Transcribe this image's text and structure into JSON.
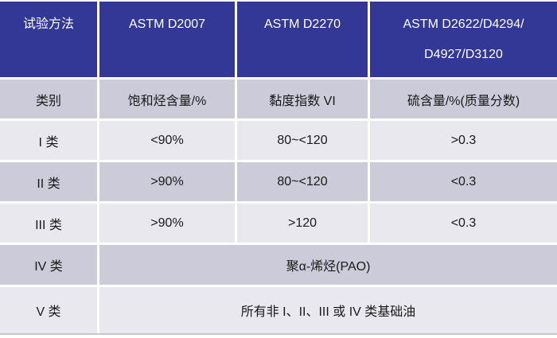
{
  "table": {
    "header": {
      "test_method": "试验方法",
      "astm_d2007": "ASTM D2007",
      "astm_d2270": "ASTM D2270",
      "astm_sulfur_line1": "ASTM D2622/D4294/",
      "astm_sulfur_line2": "D4927/D3120"
    },
    "category_row": {
      "label": "类别",
      "saturates": "饱和烃含量/%",
      "viscosity_index": "黏度指数 VI",
      "sulfur": "硫含量/%(质量分数)"
    },
    "group_rows": [
      {
        "label": "I 类",
        "saturates": "<90%",
        "viscosity_index": "80~<120",
        "sulfur": ">0.3"
      },
      {
        "label": "II 类",
        "saturates": ">90%",
        "viscosity_index": "80~<120",
        "sulfur": "<0.3"
      },
      {
        "label": "III 类",
        "saturates": ">90%",
        "viscosity_index": ">120",
        "sulfur": "<0.3"
      }
    ],
    "merged_rows": [
      {
        "label": "IV 类",
        "value": "聚α-烯烃(PAO)"
      },
      {
        "label": "V 类",
        "value": "所有非 I、II、III 或 IV 类基础油"
      }
    ],
    "colors": {
      "header_bg": "#333795",
      "row_dark": "#cbcbda",
      "row_light": "#e8e8ee",
      "header_text": "#ffffff",
      "body_text": "#1a1a1a"
    }
  }
}
